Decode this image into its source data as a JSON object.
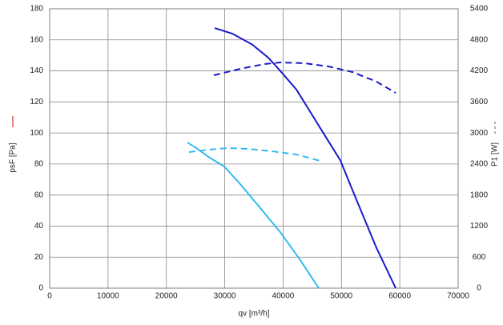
{
  "chart_data": {
    "type": "line",
    "xlabel": "qv [m³/h]",
    "ylabel": "psF [Pa]",
    "y2label": "P1 [W]",
    "xlim": [
      0,
      70000
    ],
    "xticks": [
      0,
      10000,
      20000,
      30000,
      40000,
      50000,
      60000,
      70000
    ],
    "ylim": [
      0,
      180
    ],
    "yticks": [
      0,
      20,
      40,
      60,
      80,
      100,
      120,
      140,
      160,
      180
    ],
    "y2lim": [
      0,
      5400
    ],
    "y2ticks": [
      0,
      600,
      1200,
      1800,
      2400,
      3000,
      3600,
      4200,
      4800,
      5400
    ],
    "grid": true,
    "series": [
      {
        "color": "#1a1acc",
        "dashed": false,
        "axis": "y",
        "x": [
          28275,
          31300,
          34700,
          37470,
          39530,
          42280,
          46400,
          49800,
          52570,
          56000,
          59300
        ],
        "values": [
          167.6,
          164,
          157,
          148.5,
          140,
          128,
          103,
          82.5,
          57,
          26,
          0
        ]
      },
      {
        "color": "#1a1acc",
        "dashed": true,
        "axis": "y2",
        "x": [
          28130,
          32670,
          36790,
          39530,
          43650,
          47770,
          51880,
          56000,
          59300
        ],
        "values": [
          4116,
          4240,
          4332,
          4363,
          4348,
          4286,
          4178,
          3992,
          3775
        ]
      },
      {
        "color": "#33bbee",
        "dashed": false,
        "axis": "y",
        "x": [
          23600,
          25120,
          27450,
          29920,
          32670,
          36100,
          39530,
          42960,
          46120
        ],
        "values": [
          93.9,
          90.3,
          84,
          78.4,
          67,
          51.6,
          36,
          18,
          0
        ]
      },
      {
        "color": "#33bbee",
        "dashed": true,
        "axis": "y2",
        "x": [
          23880,
          27180,
          30610,
          34040,
          38160,
          42280,
          46400
        ],
        "values": [
          2630,
          2677,
          2708,
          2692,
          2646,
          2584,
          2460
        ]
      }
    ]
  }
}
